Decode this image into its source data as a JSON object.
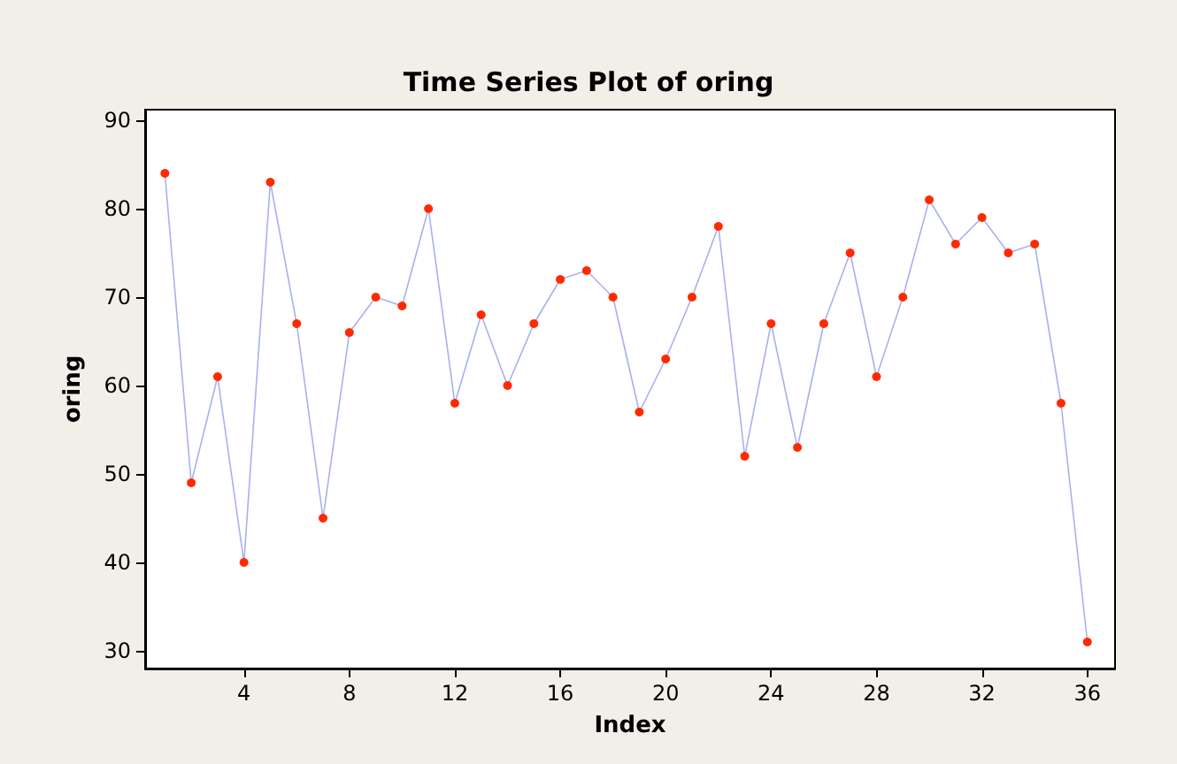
{
  "chart_data": {
    "type": "line",
    "title": "Time Series Plot of oring",
    "xlabel": "Index",
    "ylabel": "oring",
    "x": [
      1,
      2,
      3,
      4,
      5,
      6,
      7,
      8,
      9,
      10,
      11,
      12,
      13,
      14,
      15,
      16,
      17,
      18,
      19,
      20,
      21,
      22,
      23,
      24,
      25,
      26,
      27,
      28,
      29,
      30,
      31,
      32,
      33,
      34,
      35,
      36
    ],
    "series": [
      {
        "color": "#ff2a00",
        "values": [
          84,
          49,
          61,
          40,
          83,
          67,
          45,
          66,
          70,
          69,
          80,
          58,
          68,
          60,
          67,
          72,
          73,
          70,
          57,
          63,
          70,
          78,
          52,
          67,
          53,
          67,
          75,
          61,
          70,
          81,
          76,
          79,
          75,
          76,
          58,
          31
        ]
      }
    ],
    "xlim": [
      0.25,
      37.05
    ],
    "xticks": [
      4,
      8,
      12,
      16,
      20,
      24,
      28,
      32,
      36
    ],
    "ylim": [
      28,
      91.2
    ],
    "yticks": [
      30,
      40,
      50,
      60,
      70,
      80,
      90
    ],
    "grid": false,
    "marker": "circle",
    "line_style": "solid"
  }
}
